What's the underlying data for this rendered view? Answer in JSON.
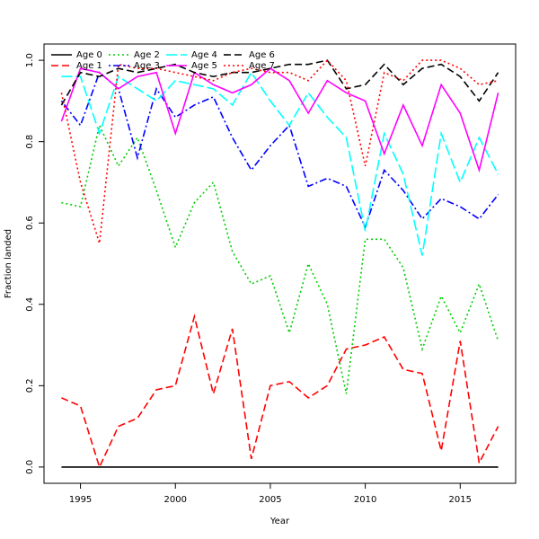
{
  "chart_data": {
    "type": "line",
    "x_label": "Year",
    "y_label": "Fraction landed",
    "x": [
      1994,
      1995,
      1996,
      1997,
      1998,
      1999,
      2000,
      2001,
      2002,
      2003,
      2004,
      2005,
      2006,
      2007,
      2008,
      2009,
      2010,
      2011,
      2012,
      2013,
      2014,
      2015,
      2016,
      2017
    ],
    "xlim": [
      1993.08,
      2017.92
    ],
    "xticks": [
      1995,
      2000,
      2005,
      2010,
      2015
    ],
    "ylim": [
      -0.04,
      1.04
    ],
    "yticks": [
      {
        "value": 0,
        "label": "0.0"
      },
      0.2,
      0.4,
      0.6,
      0.8,
      {
        "value": 1,
        "label": "1.0"
      }
    ],
    "legend": "top-left",
    "series": [
      {
        "name": "Age 0",
        "color": "#000000",
        "dash": "solid",
        "values": [
          0,
          0,
          0,
          0,
          0,
          0,
          0,
          0,
          0,
          0,
          0,
          0,
          0,
          0,
          0,
          0,
          0,
          0,
          0,
          0,
          0,
          0,
          0,
          0
        ]
      },
      {
        "name": "Age 1",
        "color": "#ff0000",
        "dash": "dashed",
        "values": [
          0.17,
          0.15,
          0.0,
          0.1,
          0.12,
          0.19,
          0.2,
          0.37,
          0.18,
          0.34,
          0.02,
          0.2,
          0.21,
          0.17,
          0.2,
          0.29,
          0.3,
          0.32,
          0.24,
          0.23,
          0.04,
          0.31,
          0.01,
          0.1
        ]
      },
      {
        "name": "Age 2",
        "color": "#00cd00",
        "dash": "dotted",
        "values": [
          0.65,
          0.64,
          0.84,
          0.74,
          0.81,
          0.68,
          0.54,
          0.65,
          0.7,
          0.53,
          0.45,
          0.47,
          0.33,
          0.5,
          0.4,
          0.18,
          0.56,
          0.56,
          0.49,
          0.29,
          0.42,
          0.33,
          0.45,
          0.31
        ]
      },
      {
        "name": "Age 3",
        "color": "#0000ff",
        "dash": "dotdash",
        "values": [
          0.9,
          0.84,
          0.97,
          0.93,
          0.76,
          0.93,
          0.86,
          0.89,
          0.91,
          0.81,
          0.73,
          0.79,
          0.84,
          0.69,
          0.71,
          0.69,
          0.59,
          0.73,
          0.68,
          0.61,
          0.66,
          0.64,
          0.61,
          0.67
        ]
      },
      {
        "name": "Age 4",
        "color": "#00ffff",
        "dash": "longdash",
        "values": [
          0.96,
          0.96,
          0.82,
          0.96,
          0.93,
          0.9,
          0.95,
          0.94,
          0.93,
          0.89,
          0.97,
          0.9,
          0.84,
          0.92,
          0.86,
          0.81,
          0.58,
          0.82,
          0.72,
          0.52,
          0.82,
          0.7,
          0.81,
          0.72
        ]
      },
      {
        "name": "Age 5",
        "color": "#ff00ff",
        "dash": "solid",
        "values": [
          0.85,
          0.98,
          0.97,
          0.93,
          0.96,
          0.97,
          0.82,
          0.97,
          0.94,
          0.92,
          0.94,
          0.98,
          0.95,
          0.87,
          0.95,
          0.92,
          0.9,
          0.77,
          0.89,
          0.79,
          0.94,
          0.87,
          0.73,
          0.92
        ]
      },
      {
        "name": "Age 6",
        "color": "#000000",
        "dash": "dashed",
        "values": [
          0.89,
          0.97,
          0.96,
          0.98,
          0.97,
          0.98,
          0.99,
          0.97,
          0.96,
          0.97,
          0.97,
          0.98,
          0.99,
          0.99,
          1.0,
          0.93,
          0.94,
          0.99,
          0.94,
          0.98,
          0.99,
          0.96,
          0.9,
          0.97
        ]
      },
      {
        "name": "Age 7",
        "color": "#ff0000",
        "dash": "dotted",
        "values": [
          0.92,
          0.7,
          0.55,
          0.99,
          0.98,
          0.98,
          0.97,
          0.96,
          0.95,
          0.97,
          0.98,
          0.97,
          0.97,
          0.95,
          1.0,
          0.95,
          0.74,
          0.97,
          0.95,
          1.0,
          1.0,
          0.98,
          0.94,
          0.95
        ]
      }
    ]
  }
}
